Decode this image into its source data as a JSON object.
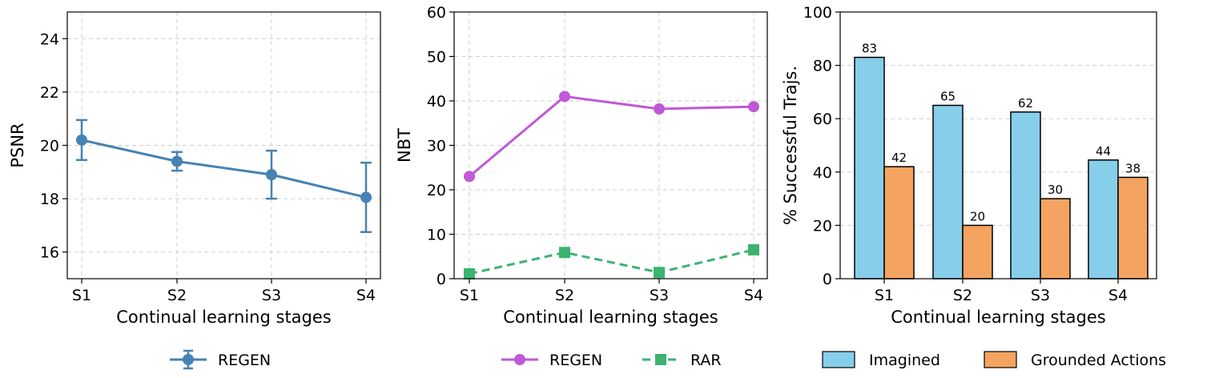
{
  "chart_data": [
    {
      "type": "line",
      "categories": [
        "S1",
        "S2",
        "S3",
        "S4"
      ],
      "series": [
        {
          "name": "REGEN",
          "values": [
            20.2,
            19.4,
            18.9,
            18.05
          ],
          "error_low": [
            19.45,
            19.05,
            18.0,
            16.75
          ],
          "error_high": [
            20.95,
            19.75,
            19.8,
            19.35
          ],
          "color": "#4682b4",
          "marker": "circle",
          "line_style": "solid"
        }
      ],
      "xlabel": "Continual learning stages",
      "ylabel": "PSNR",
      "ylim": [
        15,
        25
      ],
      "yticks": [
        16,
        18,
        20,
        22,
        24
      ],
      "grid": true,
      "legend_position": "bottom"
    },
    {
      "type": "line",
      "categories": [
        "S1",
        "S2",
        "S3",
        "S4"
      ],
      "series": [
        {
          "name": "REGEN",
          "values": [
            23,
            41,
            38.2,
            38.7
          ],
          "color": "#c158d6",
          "marker": "circle",
          "line_style": "solid"
        },
        {
          "name": "RAR",
          "values": [
            1.1,
            5.9,
            1.4,
            6.5
          ],
          "color": "#3cb371",
          "marker": "square",
          "line_style": "dashed"
        }
      ],
      "xlabel": "Continual learning stages",
      "ylabel": "NBT",
      "ylim": [
        0,
        60
      ],
      "yticks": [
        0,
        10,
        20,
        30,
        40,
        50,
        60
      ],
      "grid": true,
      "legend_position": "bottom"
    },
    {
      "type": "bar",
      "categories": [
        "S1",
        "S2",
        "S3",
        "S4"
      ],
      "series": [
        {
          "name": "Imagined",
          "values": [
            83,
            65,
            62.5,
            44.5
          ],
          "labels": [
            "83",
            "65",
            "62",
            "44"
          ],
          "color": "#87ceeb"
        },
        {
          "name": "Grounded Actions",
          "values": [
            42,
            20,
            30,
            38
          ],
          "labels": [
            "42",
            "20",
            "30",
            "38"
          ],
          "color": "#f4a460"
        }
      ],
      "xlabel": "Continual learning stages",
      "ylabel": "% Successful Trajs.",
      "ylim": [
        0,
        100
      ],
      "yticks": [
        0,
        20,
        40,
        60,
        80,
        100
      ],
      "grid": true,
      "legend_position": "bottom"
    }
  ]
}
